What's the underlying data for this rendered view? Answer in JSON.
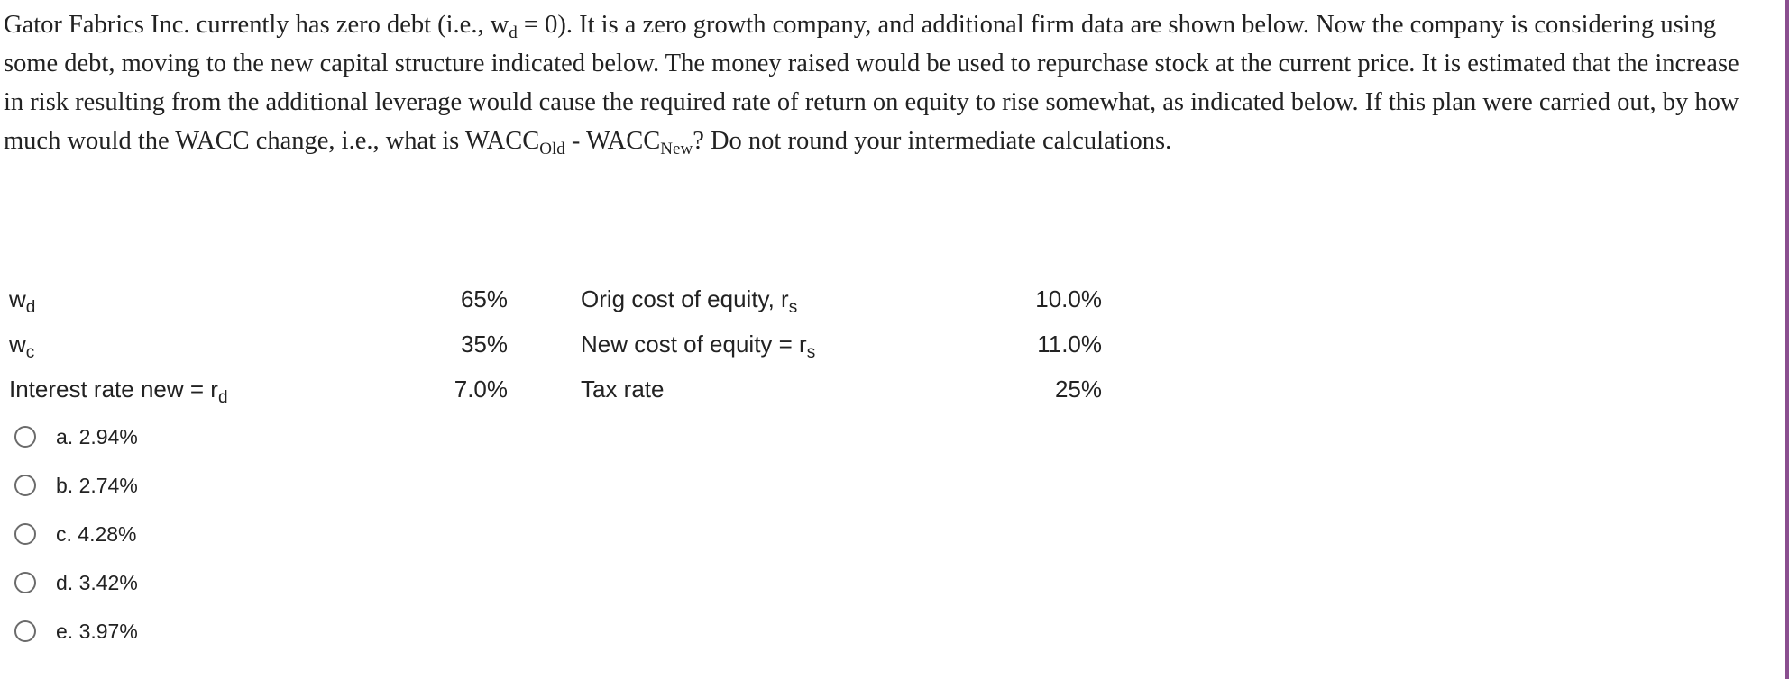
{
  "question": {
    "part1": "Gator Fabrics Inc. currently has zero debt (i.e., w",
    "sub1": "d",
    "part2": " = 0). It is a zero growth company, and additional firm data are shown below. Now the company is considering using some debt, moving to the new capital structure indicated below. The money raised would be used to repurchase stock at the current price. It is estimated that the increase in risk resulting from the additional leverage would cause the required rate of return on equity to rise somewhat, as indicated below. If this plan were carried out, by how much would the WACC change, i.e., what is WACC",
    "sub2": "Old",
    "part3": " - WACC",
    "sub3": "New",
    "part4": "? Do not round your intermediate calculations."
  },
  "table": {
    "rows": [
      {
        "left_label": "w",
        "left_sub": "d",
        "left_value": "65%",
        "right_label": "Orig cost of equity, r",
        "right_sub": "s",
        "right_value": "10.0%"
      },
      {
        "left_label": "w",
        "left_sub": "c",
        "left_value": "35%",
        "right_label": "New cost of equity = r",
        "right_sub": "s",
        "right_value": "11.0%"
      },
      {
        "left_label": "Interest rate new = r",
        "left_sub": "d",
        "left_value": "7.0%",
        "right_label": "Tax rate",
        "right_sub": "",
        "right_value": "25%"
      }
    ]
  },
  "options": [
    "a. 2.94%",
    "b. 2.74%",
    "c. 4.28%",
    "d. 3.42%",
    "e. 3.97%"
  ],
  "colors": {
    "text": "#222222",
    "radio_border": "#6b6b6b",
    "right_rule": "#8a4f8f"
  }
}
